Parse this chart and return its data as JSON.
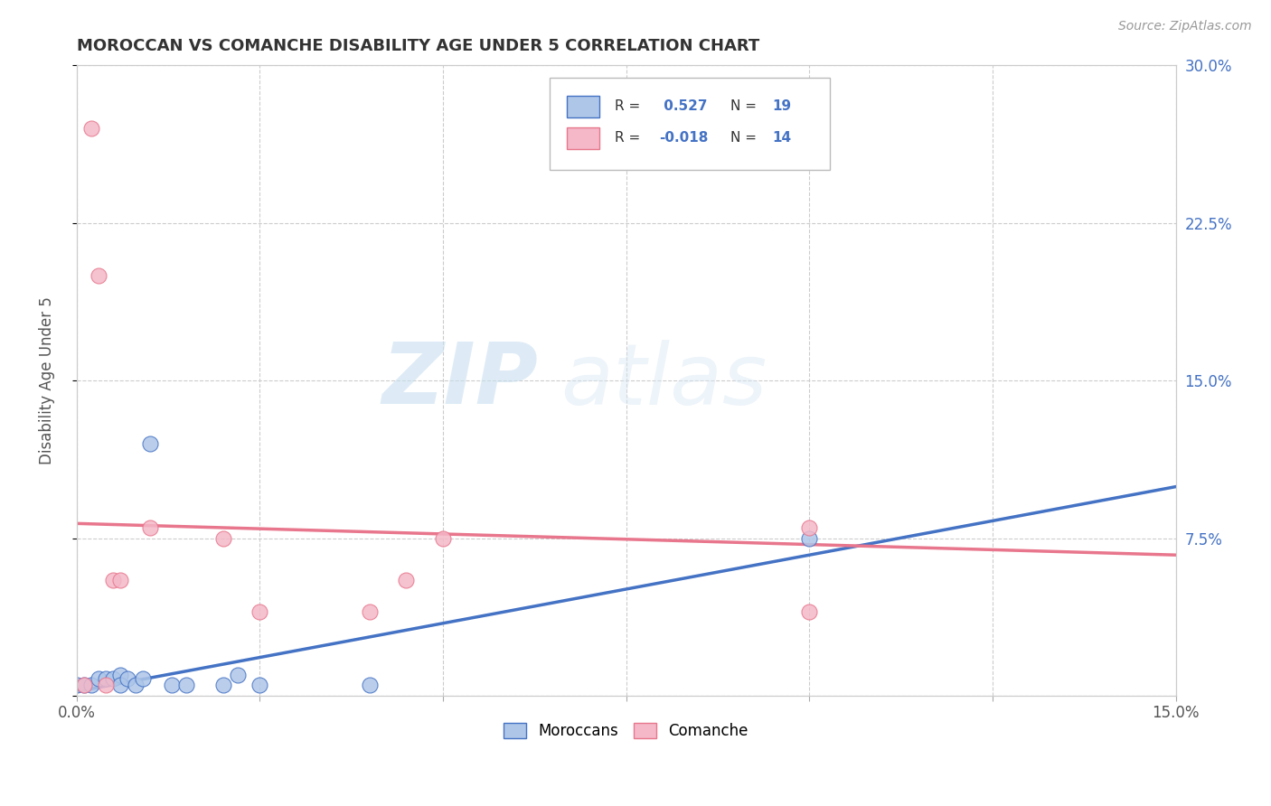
{
  "title": "MOROCCAN VS COMANCHE DISABILITY AGE UNDER 5 CORRELATION CHART",
  "source": "Source: ZipAtlas.com",
  "ylabel": "Disability Age Under 5",
  "xlim": [
    0.0,
    0.15
  ],
  "ylim": [
    0.0,
    0.3
  ],
  "xticks": [
    0.0,
    0.025,
    0.05,
    0.075,
    0.1,
    0.125,
    0.15
  ],
  "yticks": [
    0.0,
    0.075,
    0.15,
    0.225,
    0.3
  ],
  "right_ytick_labels": [
    "",
    "7.5%",
    "15.0%",
    "22.5%",
    "30.0%"
  ],
  "xtick_labels": [
    "0.0%",
    "",
    "",
    "",
    "",
    "",
    "15.0%"
  ],
  "moroccan_R": 0.527,
  "moroccan_N": 19,
  "comanche_R": -0.018,
  "comanche_N": 14,
  "moroccan_color": "#aec6e8",
  "comanche_color": "#f4b8c8",
  "moroccan_line_color": "#4472c4",
  "comanche_line_color": "#e8768c",
  "background_color": "#ffffff",
  "grid_color": "#cccccc",
  "watermark_zip": "ZIP",
  "watermark_atlas": "atlas",
  "moroccan_x": [
    0.0,
    0.001,
    0.002,
    0.003,
    0.004,
    0.005,
    0.006,
    0.006,
    0.007,
    0.008,
    0.009,
    0.01,
    0.013,
    0.015,
    0.02,
    0.022,
    0.025,
    0.04,
    0.1
  ],
  "moroccan_y": [
    0.005,
    0.005,
    0.005,
    0.008,
    0.008,
    0.008,
    0.01,
    0.005,
    0.008,
    0.005,
    0.008,
    0.12,
    0.005,
    0.005,
    0.005,
    0.01,
    0.005,
    0.005,
    0.075
  ],
  "comanche_x": [
    0.001,
    0.002,
    0.003,
    0.004,
    0.005,
    0.006,
    0.01,
    0.02,
    0.025,
    0.04,
    0.045,
    0.05,
    0.1,
    0.1
  ],
  "comanche_y": [
    0.005,
    0.27,
    0.2,
    0.005,
    0.055,
    0.055,
    0.08,
    0.075,
    0.04,
    0.04,
    0.055,
    0.075,
    0.04,
    0.08
  ]
}
